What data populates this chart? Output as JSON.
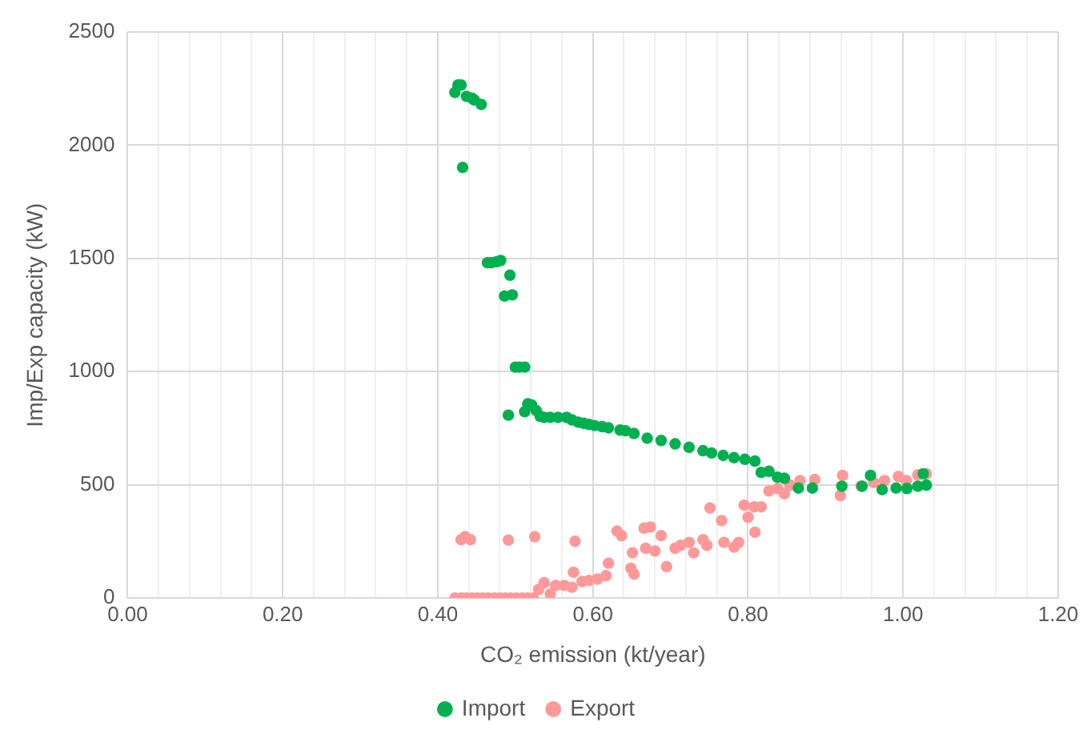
{
  "chart_data": {
    "type": "scatter",
    "xlabel": "CO₂ emission (kt/year)",
    "ylabel": "Imp/Exp capacity (kW)",
    "xlim": [
      0,
      1.2
    ],
    "ylim": [
      0,
      2500
    ],
    "xticks": [
      {
        "value": 0,
        "label": "0.00"
      },
      {
        "value": 0.04,
        "label": null
      },
      {
        "value": 0.08,
        "label": null
      },
      {
        "value": 0.12,
        "label": null
      },
      {
        "value": 0.16,
        "label": null
      },
      {
        "value": 0.2,
        "label": "0.20"
      },
      {
        "value": 0.24,
        "label": null
      },
      {
        "value": 0.28,
        "label": null
      },
      {
        "value": 0.32,
        "label": null
      },
      {
        "value": 0.36,
        "label": null
      },
      {
        "value": 0.4,
        "label": "0.40"
      },
      {
        "value": 0.44,
        "label": null
      },
      {
        "value": 0.48,
        "label": null
      },
      {
        "value": 0.52,
        "label": null
      },
      {
        "value": 0.56,
        "label": null
      },
      {
        "value": 0.6,
        "label": "0.60"
      },
      {
        "value": 0.64,
        "label": null
      },
      {
        "value": 0.68,
        "label": null
      },
      {
        "value": 0.72,
        "label": null
      },
      {
        "value": 0.76,
        "label": null
      },
      {
        "value": 0.8,
        "label": "0.80"
      },
      {
        "value": 0.84,
        "label": null
      },
      {
        "value": 0.88,
        "label": null
      },
      {
        "value": 0.92,
        "label": null
      },
      {
        "value": 0.96,
        "label": null
      },
      {
        "value": 1,
        "label": "1.00"
      },
      {
        "value": 1.04,
        "label": null
      },
      {
        "value": 1.08,
        "label": null
      },
      {
        "value": 1.12,
        "label": null
      },
      {
        "value": 1.16,
        "label": null
      },
      {
        "value": 1.2,
        "label": "1.20"
      }
    ],
    "yticks": [
      0,
      500,
      1000,
      1500,
      2000,
      2500
    ],
    "grid": true,
    "legend": "bottom",
    "marker": "circle",
    "series": [
      {
        "name": "Import",
        "color": "#00b050",
        "x": [
          0.422,
          0.426,
          0.43,
          0.437,
          0.444,
          0.447,
          0.456,
          0.432,
          0.464,
          0.469,
          0.476,
          0.481,
          0.493,
          0.486,
          0.496,
          0.5,
          0.505,
          0.512,
          0.491,
          0.512,
          0.516,
          0.521,
          0.527,
          0.532,
          0.537,
          0.545,
          0.555,
          0.566,
          0.573,
          0.581,
          0.588,
          0.595,
          0.602,
          0.612,
          0.62,
          0.635,
          0.642,
          0.653,
          0.67,
          0.688,
          0.706,
          0.724,
          0.742,
          0.753,
          0.768,
          0.782,
          0.796,
          0.809,
          0.817,
          0.827,
          0.838,
          0.847,
          0.865,
          0.883,
          0.921,
          0.947,
          0.958,
          0.973,
          0.991,
          1.005,
          1.019,
          1.03,
          1.026
        ],
        "values": [
          2233,
          2266,
          2266,
          2216,
          2208,
          2200,
          2180,
          1902,
          1481,
          1481,
          1486,
          1491,
          1426,
          1334,
          1339,
          1020,
          1020,
          1020,
          808,
          823,
          858,
          853,
          828,
          803,
          798,
          798,
          798,
          798,
          787,
          777,
          772,
          767,
          762,
          757,
          752,
          742,
          739,
          727,
          706,
          696,
          681,
          666,
          651,
          641,
          630,
          620,
          613,
          605,
          555,
          560,
          534,
          529,
          486,
          486,
          494,
          494,
          542,
          479,
          486,
          484,
          494,
          499,
          549
        ]
      },
      {
        "name": "Export",
        "color": "#ff9999",
        "x": [
          0.422,
          0.43,
          0.437,
          0.444,
          0.451,
          0.458,
          0.465,
          0.473,
          0.48,
          0.487,
          0.494,
          0.501,
          0.509,
          0.516,
          0.523,
          0.43,
          0.435,
          0.442,
          0.491,
          0.525,
          0.53,
          0.537,
          0.545,
          0.552,
          0.563,
          0.573,
          0.577,
          0.575,
          0.586,
          0.595,
          0.606,
          0.617,
          0.62,
          0.631,
          0.637,
          0.651,
          0.649,
          0.653,
          0.666,
          0.674,
          0.668,
          0.68,
          0.688,
          0.695,
          0.706,
          0.713,
          0.724,
          0.73,
          0.742,
          0.747,
          0.751,
          0.766,
          0.769,
          0.782,
          0.788,
          0.795,
          0.8,
          0.809,
          0.808,
          0.817,
          0.827,
          0.838,
          0.847,
          0.854,
          0.867,
          0.886,
          0.919,
          0.922,
          0.946,
          0.962,
          0.976,
          0.994,
          1.004,
          1.019,
          1.03
        ],
        "values": [
          0,
          0,
          0,
          0,
          0,
          0,
          0,
          0,
          0,
          0,
          0,
          0,
          0,
          0,
          0,
          258,
          271,
          258,
          256,
          271,
          38,
          68,
          18,
          56,
          56,
          48,
          251,
          114,
          73,
          78,
          84,
          99,
          154,
          296,
          276,
          200,
          132,
          106,
          309,
          314,
          220,
          208,
          276,
          139,
          220,
          233,
          246,
          200,
          258,
          233,
          398,
          342,
          246,
          225,
          246,
          410,
          357,
          291,
          403,
          403,
          473,
          484,
          461,
          499,
          519,
          524,
          453,
          542,
          494,
          511,
          519,
          537,
          519,
          544,
          549
        ]
      }
    ]
  }
}
